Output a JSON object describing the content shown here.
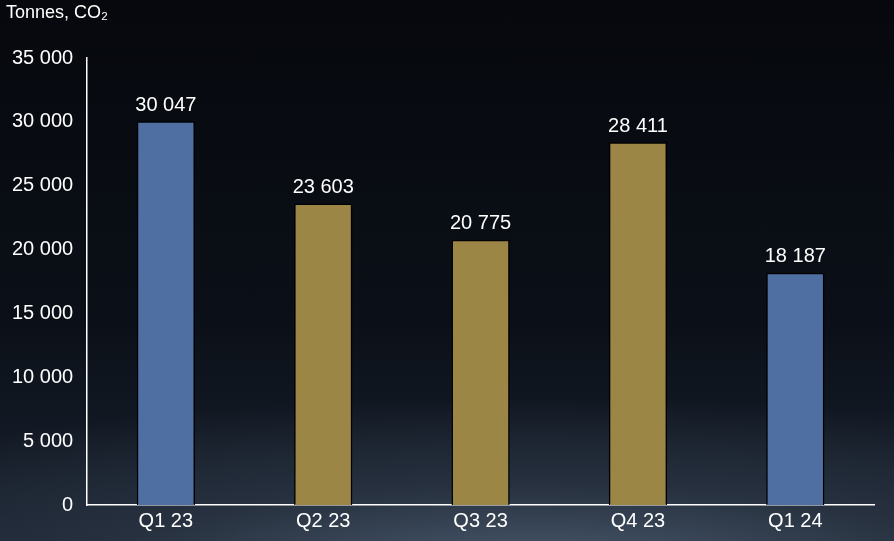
{
  "chart_data": {
    "type": "bar",
    "ylabel": "Tonnes, CO₂",
    "categories": [
      "Q1 23",
      "Q2 23",
      "Q3 23",
      "Q4 23",
      "Q1 24"
    ],
    "values": [
      30047,
      23603,
      20775,
      28411,
      18187
    ],
    "value_labels": [
      "30 047",
      "23 603",
      "20 775",
      "28 411",
      "18 187"
    ],
    "colors": [
      "#4f6fa3",
      "#9c8645",
      "#9c8645",
      "#9c8645",
      "#4f6fa3"
    ],
    "ylim": [
      0,
      35000
    ],
    "yticks": [
      {
        "value": 0,
        "label": "0"
      },
      {
        "value": 5000,
        "label": "5 000"
      },
      {
        "value": 10000,
        "label": "10 000"
      },
      {
        "value": 15000,
        "label": "15 000"
      },
      {
        "value": 20000,
        "label": "20 000"
      },
      {
        "value": 25000,
        "label": "25 000"
      },
      {
        "value": 30000,
        "label": "30 000"
      },
      {
        "value": 35000,
        "label": "35 000"
      }
    ],
    "grid": false,
    "data_labels": true
  }
}
